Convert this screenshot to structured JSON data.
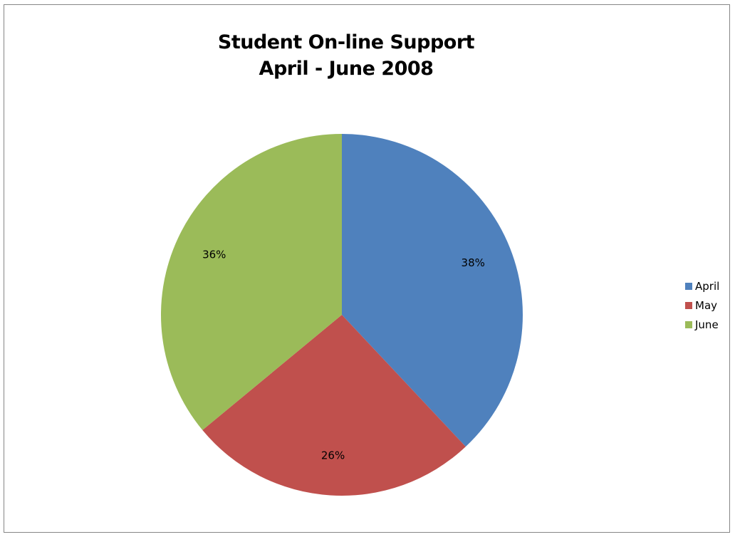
{
  "chart_data": {
    "type": "pie",
    "title_lines": [
      "Student On-line Support",
      "April - June 2008"
    ],
    "categories": [
      "April",
      "May",
      "June"
    ],
    "values": [
      38,
      26,
      36
    ],
    "labels": [
      "38%",
      "26%",
      "36%"
    ],
    "colors": [
      "#4F81BD",
      "#C0504D",
      "#9BBB59"
    ],
    "legend_position": "right",
    "start_angle": "12 o'clock",
    "direction": "clockwise"
  }
}
